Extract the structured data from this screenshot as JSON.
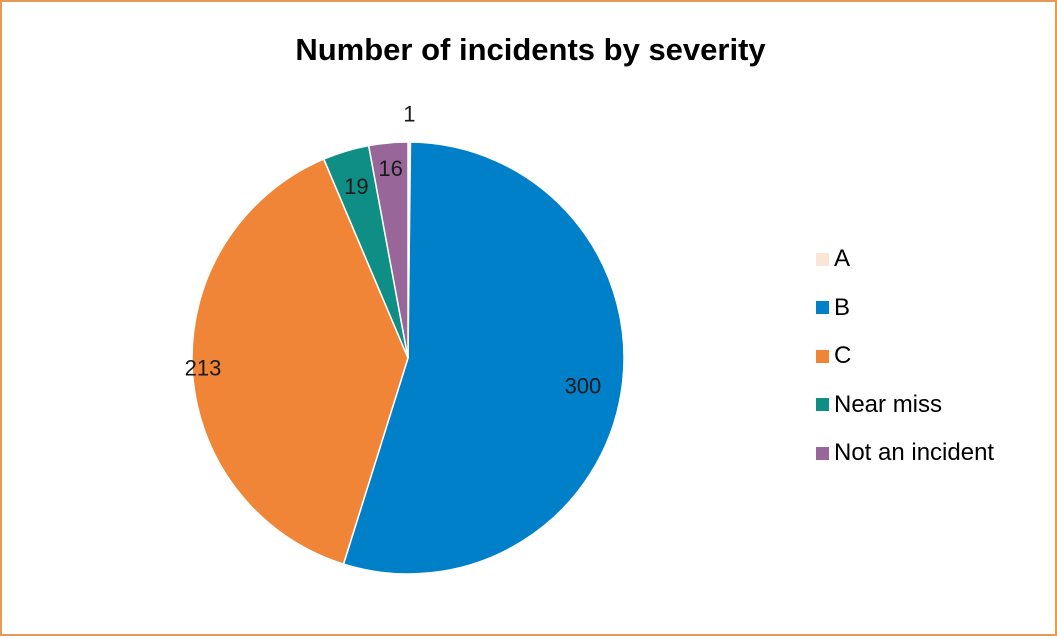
{
  "chart_data": {
    "type": "pie",
    "title": "Number of incidents by severity",
    "categories": [
      "A",
      "B",
      "C",
      "Near miss",
      "Not an incident"
    ],
    "values": [
      1,
      300,
      213,
      19,
      16
    ],
    "colors": [
      "#FBE5D6",
      "#0080C8",
      "#F08537",
      "#0E8E85",
      "#996699"
    ],
    "data_labels": [
      "1",
      "300",
      "213",
      "19",
      "16"
    ],
    "legend_position": "right"
  }
}
